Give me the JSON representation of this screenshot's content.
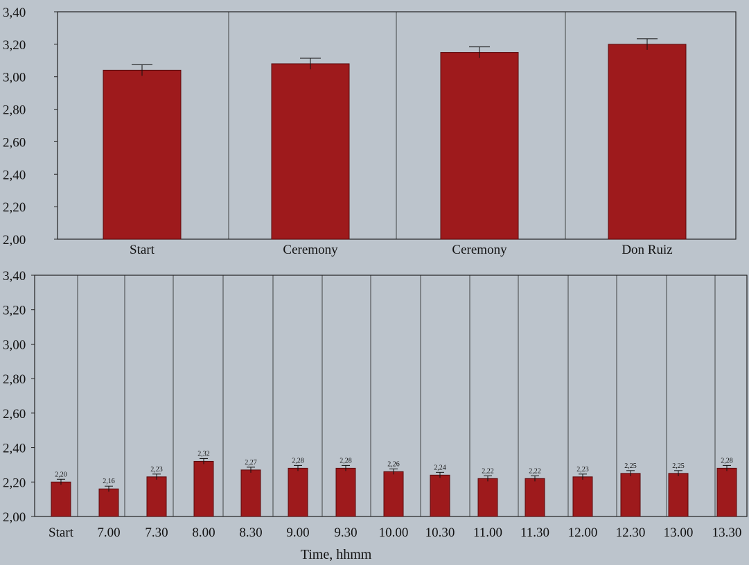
{
  "colors": {
    "bar_fill": "#9e1a1c",
    "bar_edge": "#5a0a0c",
    "background": "#bcc4cc",
    "grid": "#222222"
  },
  "chart_data": [
    {
      "type": "bar",
      "categories": [
        "Start",
        "Ceremony",
        "Ceremony",
        "Don Ruiz"
      ],
      "values": [
        3.04,
        3.08,
        3.15,
        3.2
      ],
      "ylim": [
        2.0,
        3.4
      ],
      "yticks": [
        "2,00",
        "2,20",
        "2,40",
        "2,60",
        "2,80",
        "3,00",
        "3,20",
        "3,40"
      ],
      "yticks_values": [
        2.0,
        2.2,
        2.4,
        2.6,
        2.8,
        3.0,
        3.2,
        3.4
      ],
      "error_bars": true,
      "grid": "vertical",
      "xlabel": "",
      "ylabel": ""
    },
    {
      "type": "bar",
      "categories": [
        "Start",
        "7.00",
        "7.30",
        "8.00",
        "8.30",
        "9.00",
        "9.30",
        "10.00",
        "10.30",
        "11.00",
        "11.30",
        "12.00",
        "12.30",
        "13.00",
        "13.30"
      ],
      "values": [
        2.2,
        2.16,
        2.23,
        2.32,
        2.27,
        2.28,
        2.28,
        2.26,
        2.24,
        2.22,
        2.22,
        2.23,
        2.25,
        2.25,
        2.28
      ],
      "data_labels": [
        "2,20",
        "2,16",
        "2,23",
        "2,32",
        "2,27",
        "2,28",
        "2,28",
        "2,26",
        "2,24",
        "2,22",
        "2,22",
        "2,23",
        "2,25",
        "2,25",
        "2,28"
      ],
      "ylim": [
        2.0,
        3.4
      ],
      "yticks": [
        "2,00",
        "2,20",
        "2,40",
        "2,60",
        "2,80",
        "3,00",
        "3,20",
        "3,40"
      ],
      "yticks_values": [
        2.0,
        2.2,
        2.4,
        2.6,
        2.8,
        3.0,
        3.2,
        3.4
      ],
      "error_bars": true,
      "grid": "vertical",
      "xlabel": "Time, hhmm",
      "ylabel": ""
    }
  ]
}
